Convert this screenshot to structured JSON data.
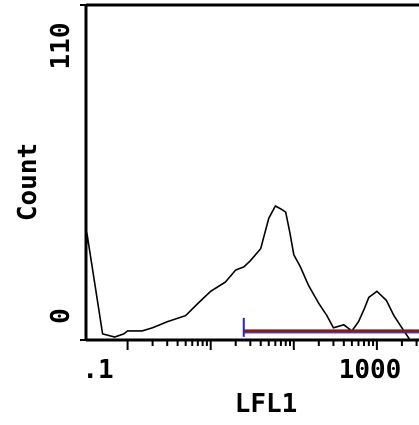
{
  "chart_data": {
    "type": "line",
    "title": "",
    "xlabel": "LFL1",
    "ylabel": "Count",
    "xscale": "log",
    "xlim": [
      0.0316,
      1000
    ],
    "ylim": [
      0,
      110
    ],
    "x_tick_labels": [
      ".1",
      "1000"
    ],
    "y_tick_labels": [
      "0",
      "110"
    ],
    "grid": false,
    "histogram": {
      "x": [
        0.032,
        0.05,
        0.07,
        0.09,
        0.1,
        0.15,
        0.2,
        0.3,
        0.5,
        0.7,
        1,
        1.5,
        2,
        2.5,
        3,
        4,
        5,
        6,
        7,
        8,
        9,
        10,
        12,
        15,
        20,
        25,
        30,
        40,
        50,
        60,
        70,
        80,
        100,
        130,
        160,
        200,
        250,
        300,
        350,
        400,
        500,
        600,
        700,
        800
      ],
      "y": [
        36,
        2,
        1,
        2,
        3,
        3,
        4,
        6,
        8,
        12,
        16,
        19,
        23,
        24,
        26,
        30,
        40,
        44,
        43,
        42,
        35,
        28,
        24,
        18,
        12,
        8,
        4,
        5,
        3,
        6,
        10,
        14,
        16,
        13,
        8,
        4,
        0,
        0,
        0,
        0,
        0,
        0,
        0,
        0
      ]
    },
    "marker": {
      "range": [
        2.5,
        1000
      ],
      "y": 3,
      "color": "#8b1a1a",
      "accent_color": "#2222cc"
    },
    "series_color": "#000000"
  }
}
